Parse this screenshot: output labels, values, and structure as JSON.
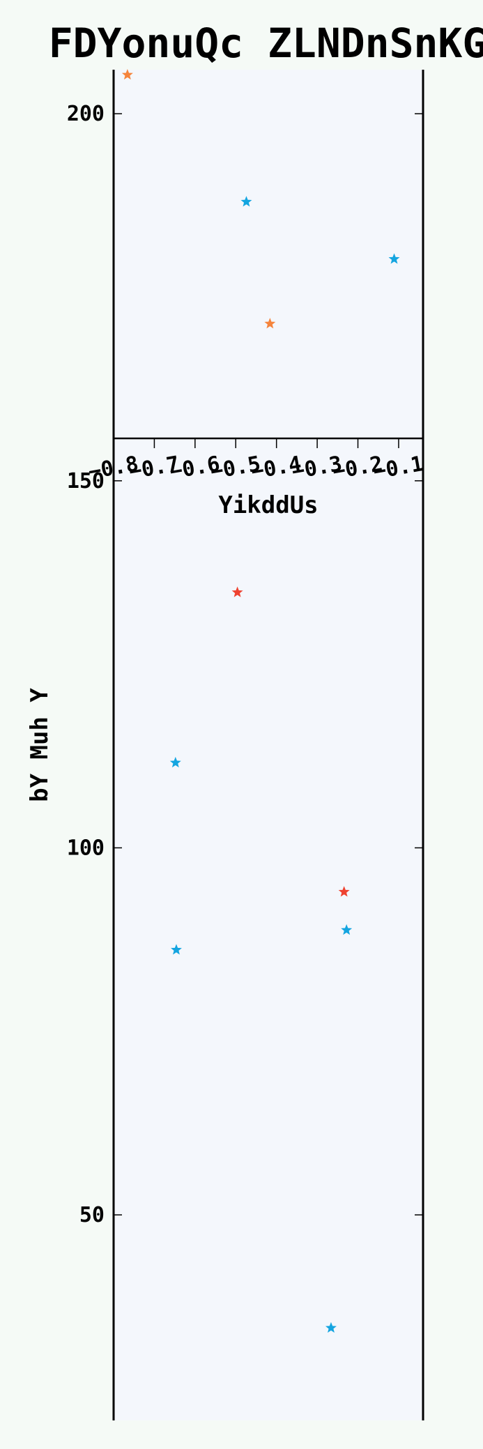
{
  "chart_data": {
    "type": "scatter",
    "title": "FDYonuQc ZLNDnSnKG",
    "xlabel": "YikddUs",
    "ylabel": "bY Muh Y",
    "xlim": [
      -0.8,
      -0.04
    ],
    "ylim": [
      22,
      206
    ],
    "x_ticks": [
      -0.8,
      -0.7,
      -0.6,
      -0.5,
      -0.4,
      -0.3,
      -0.2,
      -0.1
    ],
    "x_tick_labels": [
      "−0.8",
      "−0.7",
      "−0.6",
      "−0.5",
      "−0.4",
      "−0.3",
      "−0.2",
      "−0.1"
    ],
    "y_ticks": [
      50,
      100,
      150,
      200
    ],
    "y_tick_labels": [
      "50",
      "100",
      "150",
      "200"
    ],
    "marker": "star",
    "grid": false,
    "colors": {
      "background": "#f5faf6",
      "plot_background": "#f4f7fc",
      "axis": "#000000"
    },
    "series": [
      {
        "color": "#f5843c",
        "points": [
          {
            "x": -0.766,
            "y": 205.3
          },
          {
            "x": -0.416,
            "y": 171.4
          }
        ]
      },
      {
        "color": "#14a5e0",
        "points": [
          {
            "x": -0.474,
            "y": 188.0
          },
          {
            "x": -0.111,
            "y": 180.2
          },
          {
            "x": -0.648,
            "y": 111.6
          },
          {
            "x": -0.646,
            "y": 86.1
          },
          {
            "x": -0.228,
            "y": 88.8
          },
          {
            "x": -0.266,
            "y": 34.6
          }
        ]
      },
      {
        "color": "#ee4230",
        "points": [
          {
            "x": -0.496,
            "y": 134.8
          },
          {
            "x": -0.234,
            "y": 94.0
          }
        ]
      }
    ]
  }
}
